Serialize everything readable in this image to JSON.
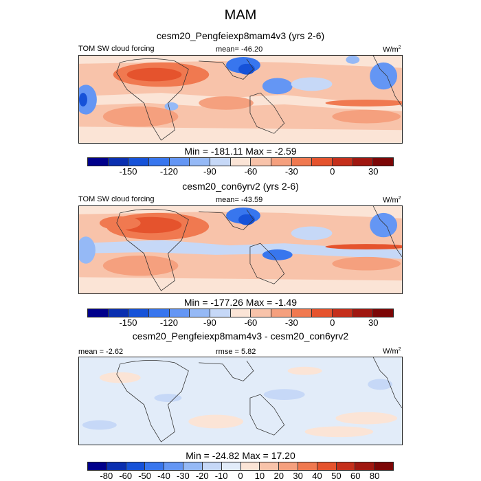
{
  "main_title": "MAM",
  "units_base": "W/m",
  "units_exp": "2",
  "panels": [
    {
      "title": "cesm20_Pengfeiexp8mam4v3 (yrs 2-6)",
      "left_label": "TOM SW cloud forcing",
      "center_label": "mean= -46.20",
      "minmax": "Min = -181.11 Max =  -2.59",
      "ticks": [
        "-150",
        "-120",
        "-90",
        "-60",
        "-30",
        "0",
        "30"
      ],
      "colors": [
        "#00008b",
        "#0a2fb0",
        "#1652d8",
        "#3876ee",
        "#6496f4",
        "#95b9f6",
        "#c6d8f7",
        "#fbe4d6",
        "#f8c3aa",
        "#f5a07e",
        "#f07950",
        "#e5532d",
        "#c52f1b",
        "#a01710",
        "#7c0606"
      ]
    },
    {
      "title": "cesm20_con6yrv2 (yrs 2-6)",
      "left_label": "TOM SW cloud forcing",
      "center_label": "mean= -43.59",
      "minmax": "Min = -177.26 Max =  -1.49",
      "ticks": [
        "-150",
        "-120",
        "-90",
        "-60",
        "-30",
        "0",
        "30"
      ],
      "colors": [
        "#00008b",
        "#0a2fb0",
        "#1652d8",
        "#3876ee",
        "#6496f4",
        "#95b9f6",
        "#c6d8f7",
        "#fbe4d6",
        "#f8c3aa",
        "#f5a07e",
        "#f07950",
        "#e5532d",
        "#c52f1b",
        "#a01710",
        "#7c0606"
      ]
    },
    {
      "title": "cesm20_Pengfeiexp8mam4v3 - cesm20_con6yrv2",
      "left_label": "mean =  -2.62",
      "center_label": "rmse =   5.82",
      "minmax": "Min = -24.82 Max =  17.20",
      "ticks": [
        "-80",
        "-60",
        "-50",
        "-40",
        "-30",
        "-20",
        "-10",
        "0",
        "10",
        "20",
        "30",
        "40",
        "50",
        "60",
        "80"
      ],
      "colors": [
        "#00008b",
        "#0a2fb0",
        "#1652d8",
        "#3876ee",
        "#6496f4",
        "#95b9f6",
        "#c6d8f7",
        "#e2ecf9",
        "#fbe4d6",
        "#f8c3aa",
        "#f5a07e",
        "#f07950",
        "#e5532d",
        "#c52f1b",
        "#a01710",
        "#7c0606"
      ]
    }
  ],
  "chart_data": [
    {
      "type": "heatmap",
      "title": "cesm20_Pengfeiexp8mam4v3 (yrs 2-6)",
      "variable": "TOM SW cloud forcing",
      "mean": -46.2,
      "min": -181.11,
      "max": -2.59,
      "units": "W/m2",
      "colorbar_levels": [
        -150,
        -120,
        -90,
        -60,
        -30,
        0,
        30
      ]
    },
    {
      "type": "heatmap",
      "title": "cesm20_con6yrv2 (yrs 2-6)",
      "variable": "TOM SW cloud forcing",
      "mean": -43.59,
      "min": -177.26,
      "max": -1.49,
      "units": "W/m2",
      "colorbar_levels": [
        -150,
        -120,
        -90,
        -60,
        -30,
        0,
        30
      ]
    },
    {
      "type": "heatmap",
      "title": "cesm20_Pengfeiexp8mam4v3 - cesm20_con6yrv2",
      "mean": -2.62,
      "rmse": 5.82,
      "min": -24.82,
      "max": 17.2,
      "units": "W/m2",
      "colorbar_levels": [
        -80,
        -60,
        -50,
        -40,
        -30,
        -20,
        -10,
        0,
        10,
        20,
        30,
        40,
        50,
        60,
        80
      ]
    }
  ]
}
